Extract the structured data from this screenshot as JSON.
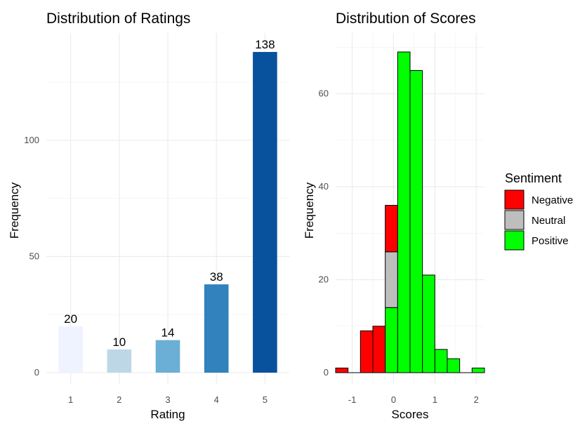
{
  "chart_data": [
    {
      "type": "bar",
      "title": "Distribution of Ratings",
      "xlabel": "Rating",
      "ylabel": "Frequency",
      "categories": [
        "1",
        "2",
        "3",
        "4",
        "5"
      ],
      "values": [
        20,
        10,
        14,
        38,
        138
      ],
      "data_labels": [
        "20",
        "10",
        "14",
        "38",
        "138"
      ],
      "colors": [
        "#eff3ff",
        "#bdd7e7",
        "#6baed6",
        "#3182bd",
        "#08519c"
      ],
      "ylim": [
        0,
        138
      ],
      "yticks": [
        0,
        50,
        100
      ],
      "ytick_labels": [
        "0",
        "50",
        "100"
      ],
      "grid": true
    },
    {
      "type": "histogram",
      "title": "Distribution of Scores",
      "xlabel": "Scores",
      "ylabel": "Frequency",
      "bin_width": 0.3,
      "bin_centers": [
        -1.25,
        -0.95,
        -0.65,
        -0.35,
        -0.05,
        0.25,
        0.55,
        0.85,
        1.15,
        1.45,
        1.75,
        2.05
      ],
      "series": [
        {
          "name": "Negative",
          "color": "#ff0000",
          "values": [
            1,
            0,
            9,
            10,
            10,
            0,
            0,
            0,
            0,
            0,
            0,
            0
          ]
        },
        {
          "name": "Neutral",
          "color": "#bebebe",
          "values": [
            0,
            0,
            0,
            0,
            12,
            0,
            0,
            0,
            0,
            0,
            0,
            0
          ]
        },
        {
          "name": "Positive",
          "color": "#00ff00",
          "values": [
            0,
            0,
            0,
            0,
            14,
            69,
            65,
            21,
            5,
            3,
            0,
            1
          ]
        }
      ],
      "xlim": [
        -1.4,
        2.2
      ],
      "ylim": [
        0,
        69
      ],
      "xticks": [
        -1,
        0,
        1,
        2
      ],
      "xtick_labels": [
        "-1",
        "0",
        "1",
        "2"
      ],
      "yticks": [
        0,
        20,
        40,
        60
      ],
      "ytick_labels": [
        "0",
        "20",
        "40",
        "60"
      ],
      "grid": true,
      "legend": {
        "title": "Sentiment",
        "position": "right",
        "items": [
          {
            "label": "Negative",
            "color": "#ff0000"
          },
          {
            "label": "Neutral",
            "color": "#bebebe"
          },
          {
            "label": "Positive",
            "color": "#00ff00"
          }
        ]
      }
    }
  ]
}
